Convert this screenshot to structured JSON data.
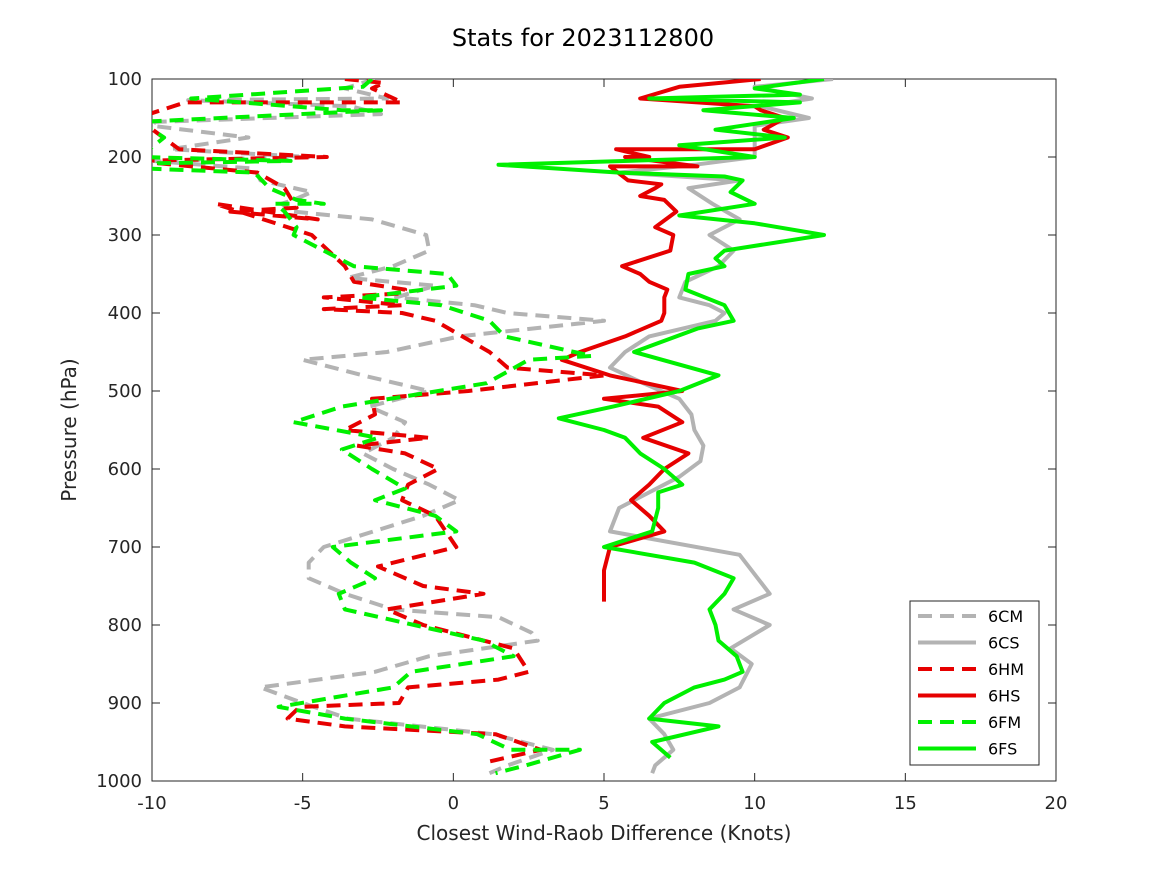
{
  "chart_data": {
    "type": "line",
    "title": "Stats for 2023112800",
    "xlabel": "Closest Wind-Raob Difference (Knots)",
    "ylabel": "Pressure (hPa)",
    "xlim": [
      -10,
      20
    ],
    "ylim": [
      1000,
      100
    ],
    "y_reversed": true,
    "grid": false,
    "legend_position": "bottom-right",
    "x_ticks": [
      -10,
      -5,
      0,
      5,
      10,
      15,
      20
    ],
    "y_ticks": [
      100,
      200,
      300,
      400,
      500,
      600,
      700,
      800,
      900,
      1000
    ],
    "series": [
      {
        "name": "6CM",
        "color": "#b3b3b3",
        "dash": true,
        "x": [
          -2.6,
          -3.6,
          -2.2,
          -8.8,
          -3.4,
          -2.4,
          -9.9,
          -10,
          -6.8,
          -9.4,
          -4.8,
          -10,
          -6.6,
          -6.4,
          -4.7,
          -5.3,
          -5.7,
          -5.3,
          -2.7,
          -0.9,
          -0.8,
          -2.0,
          -3.5,
          -0.6,
          -1.9,
          0.7,
          1.8,
          5.0,
          0.2,
          -2.2,
          -5.0,
          -3.0,
          -0.8,
          -2.8,
          -1.6,
          -2.0,
          -3.0,
          -2.0,
          -0.8,
          0.2,
          -1.0,
          -4.3,
          -4.8,
          -4.8,
          -3.6,
          -2.0,
          1.5,
          2.6,
          2.8,
          -0.8,
          -2.6,
          -6.4,
          -5.0,
          -3.5,
          1.3,
          3.3,
          1.8,
          1.2
        ],
        "y": [
          100,
          112,
          125,
          127,
          135,
          145,
          155,
          160,
          175,
          190,
          200,
          205,
          215,
          230,
          245,
          255,
          260,
          270,
          280,
          300,
          320,
          340,
          355,
          365,
          380,
          390,
          400,
          410,
          430,
          450,
          460,
          480,
          500,
          520,
          540,
          560,
          580,
          600,
          620,
          640,
          660,
          700,
          720,
          740,
          760,
          780,
          790,
          810,
          820,
          840,
          860,
          880,
          900,
          920,
          940,
          960,
          980,
          990
        ]
      },
      {
        "name": "6CS",
        "color": "#b3b3b3",
        "dash": false,
        "x": [
          12.6,
          10.0,
          11.9,
          10.2,
          11.8,
          10.0,
          10.0,
          8.0,
          5.5,
          9.5,
          7.8,
          8.6,
          9.5,
          8.5,
          9.3,
          8.8,
          7.7,
          7.5,
          8.5,
          9.0,
          8.7,
          6.5,
          5.7,
          5.2,
          6.3,
          7.5,
          7.9,
          8.0,
          8.3,
          8.2,
          7.5,
          6.5,
          5.5,
          5.2,
          9.5,
          10.5,
          9.3,
          10.5,
          9.2,
          9.9,
          9.5,
          8.5,
          6.5,
          7.0,
          7.3,
          6.7,
          6.6
        ],
        "y": [
          100,
          110,
          125,
          135,
          150,
          160,
          200,
          210,
          220,
          230,
          240,
          260,
          280,
          300,
          320,
          340,
          360,
          380,
          390,
          400,
          410,
          430,
          450,
          470,
          490,
          510,
          530,
          550,
          570,
          590,
          610,
          630,
          650,
          680,
          710,
          760,
          780,
          800,
          830,
          850,
          880,
          900,
          920,
          940,
          960,
          980,
          990
        ]
      },
      {
        "name": "6HM",
        "color": "#e60000",
        "dash": true,
        "x": [
          -3.6,
          -2.3,
          -2.7,
          -1.7,
          -8.9,
          -10.5,
          -9.1,
          -4.2,
          -10.6,
          -6.5,
          -5.6,
          -5.2,
          -7.4,
          -4.5,
          -7.9,
          -4.7,
          -3.6,
          -3.3,
          -1.6,
          -1.7,
          -4.3,
          -1.7,
          -4.3,
          -1.7,
          -0.6,
          1.2,
          1.8,
          5.0,
          0.5,
          -2.7,
          -2.6,
          -3.6,
          -0.8,
          -3.2,
          -1.6,
          -0.5,
          -1.5,
          -1.7,
          -0.6,
          0.1,
          -2.5,
          -1.0,
          1.0,
          -2.2,
          -1.0,
          2.0,
          2.5,
          1.5,
          -1.5,
          -1.8,
          -5.1,
          -5.5,
          -3.6,
          1.4,
          2.9,
          1.2
        ],
        "y": [
          100,
          105,
          112,
          130,
          130,
          150,
          190,
          200,
          205,
          220,
          240,
          265,
          270,
          280,
          260,
          300,
          340,
          360,
          370,
          375,
          380,
          390,
          395,
          400,
          410,
          450,
          470,
          480,
          500,
          510,
          530,
          550,
          560,
          570,
          580,
          600,
          620,
          640,
          660,
          700,
          725,
          750,
          760,
          780,
          800,
          830,
          860,
          870,
          880,
          900,
          905,
          920,
          930,
          940,
          960,
          975
        ]
      },
      {
        "name": "6HS",
        "color": "#e60000",
        "dash": false,
        "x": [
          10.2,
          7.5,
          6.2,
          10.0,
          10.2,
          11.0,
          10.3,
          11.1,
          10.0,
          5.4,
          6.5,
          5.7,
          8.1,
          5.2,
          5.8,
          6.9,
          6.7,
          6.2,
          7.0,
          7.4,
          6.7,
          7.3,
          7.2,
          5.6,
          6.2,
          6.5,
          7.1,
          7.0,
          7.0,
          6.9,
          5.7,
          4.2,
          3.6,
          5.2,
          7.6,
          5.0,
          6.8,
          7.6,
          6.3,
          7.8,
          7.0,
          6.5,
          5.9,
          6.5,
          7.0,
          5.2,
          5.0,
          5.0
        ],
        "y": [
          100,
          110,
          125,
          135,
          140,
          150,
          165,
          175,
          190,
          190,
          200,
          200,
          212,
          212,
          230,
          235,
          240,
          250,
          255,
          270,
          290,
          300,
          320,
          340,
          350,
          360,
          370,
          380,
          400,
          410,
          430,
          450,
          460,
          480,
          500,
          510,
          520,
          540,
          560,
          580,
          600,
          620,
          640,
          660,
          680,
          700,
          730,
          770
        ]
      },
      {
        "name": "6FM",
        "color": "#00f000",
        "dash": true,
        "x": [
          -2.7,
          -3.0,
          -8.7,
          -3.7,
          -2.4,
          -10.4,
          -9.6,
          -10.4,
          -5.4,
          -9.8,
          -10.1,
          -6.6,
          -6.1,
          -5.2,
          -4.3,
          -5.9,
          -5.6,
          -5.2,
          -5.3,
          -3.3,
          -0.2,
          0.0,
          0.1,
          -3.1,
          -0.4,
          1.2,
          1.7,
          4.6,
          2.5,
          1.1,
          -3.7,
          -5.3,
          -2.5,
          -3.7,
          -2.7,
          -1.6,
          -2.6,
          -0.6,
          0.1,
          -4.0,
          -3.4,
          -2.6,
          -3.8,
          -3.6,
          -1.3,
          1.0,
          2.0,
          -1.4,
          -2.0,
          -5.8,
          -3.6,
          0.8,
          1.9,
          4.2,
          2.4,
          1.4
        ],
        "y": [
          100,
          110,
          125,
          140,
          140,
          155,
          175,
          200,
          205,
          208,
          215,
          220,
          240,
          255,
          260,
          260,
          270,
          290,
          300,
          340,
          350,
          360,
          365,
          380,
          390,
          410,
          430,
          455,
          460,
          490,
          520,
          540,
          560,
          575,
          600,
          625,
          640,
          660,
          680,
          700,
          720,
          740,
          760,
          780,
          800,
          820,
          840,
          860,
          880,
          905,
          920,
          940,
          960,
          960,
          980,
          990
        ]
      },
      {
        "name": "6FS",
        "color": "#00f000",
        "dash": false,
        "x": [
          12.3,
          10.0,
          11.5,
          6.5,
          11.5,
          8.3,
          11.3,
          8.7,
          11.0,
          7.5,
          10.0,
          1.5,
          5.5,
          9.0,
          9.6,
          9.2,
          10.0,
          7.5,
          10.0,
          12.3,
          9.0,
          8.7,
          9.0,
          7.8,
          7.7,
          9.0,
          9.3,
          8.1,
          6.0,
          8.8,
          7.5,
          5.3,
          3.5,
          5.0,
          5.7,
          6.2,
          7.0,
          7.6,
          6.8,
          6.8,
          6.6,
          5.0,
          8.0,
          9.3,
          9.0,
          8.5,
          8.7,
          8.8,
          9.4,
          9.6,
          9.0,
          8.0,
          7.0,
          6.5,
          8.8,
          6.6,
          7.2
        ],
        "y": [
          100,
          112,
          120,
          125,
          130,
          140,
          150,
          165,
          175,
          185,
          200,
          210,
          220,
          225,
          230,
          245,
          260,
          275,
          285,
          300,
          320,
          330,
          340,
          350,
          370,
          390,
          410,
          420,
          450,
          480,
          500,
          520,
          535,
          550,
          560,
          580,
          600,
          620,
          630,
          650,
          680,
          700,
          720,
          740,
          760,
          780,
          800,
          820,
          840,
          860,
          870,
          880,
          900,
          920,
          930,
          950,
          970
        ]
      }
    ]
  }
}
